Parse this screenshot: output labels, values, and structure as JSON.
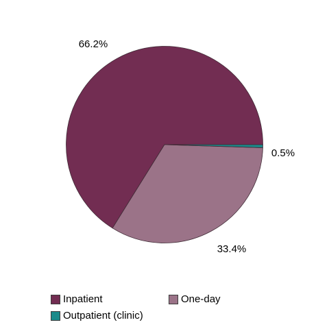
{
  "chart_data": {
    "type": "pie",
    "start_angle_deg": 0,
    "direction": "counterclockwise",
    "slices": [
      {
        "label": "Inpatient",
        "value": 66.2,
        "display": "66.2%",
        "color": "#722d52"
      },
      {
        "label": "One-day",
        "value": 33.4,
        "display": "33.4%",
        "color": "#9b7388"
      },
      {
        "label": "Outpatient (clinic)",
        "value": 0.5,
        "display": "0.5%",
        "color": "#1a8a8a"
      }
    ],
    "legend": {
      "placement": "bottom",
      "order": [
        "Inpatient",
        "One-day",
        "Outpatient (clinic)"
      ]
    }
  }
}
